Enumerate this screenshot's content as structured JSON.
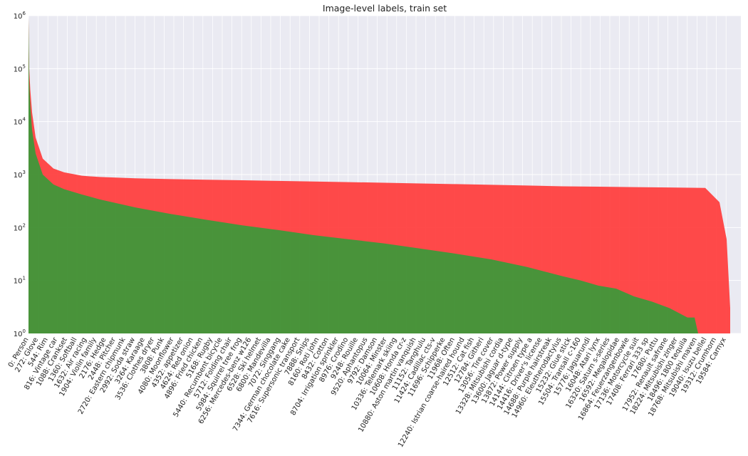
{
  "chart_data": {
    "type": "area",
    "title": "Image-level labels, train set",
    "xlabel": "",
    "ylabel": "",
    "yscale": "log",
    "ylim": [
      1,
      1000000
    ],
    "xlim": [
      0,
      20000
    ],
    "y_tick_values": [
      1,
      10,
      100,
      1000,
      10000,
      100000,
      1000000
    ],
    "y_tick_labels": [
      "10^0",
      "10^1",
      "10^2",
      "10^3",
      "10^4",
      "10^5",
      "10^6"
    ],
    "x_tick_values": [
      0,
      272,
      544,
      816,
      1088,
      1360,
      1632,
      1904,
      2176,
      2448,
      2720,
      2992,
      3264,
      3536,
      3808,
      4080,
      4352,
      4624,
      4896,
      5168,
      5440,
      5712,
      5984,
      6256,
      6528,
      6800,
      7072,
      7344,
      7616,
      7888,
      8160,
      8432,
      8704,
      8976,
      9248,
      9520,
      9792,
      10064,
      10336,
      10608,
      10880,
      11152,
      11424,
      11696,
      11968,
      12240,
      12512,
      12784,
      13056,
      13328,
      13600,
      13872,
      14144,
      14416,
      14688,
      14960,
      15232,
      15504,
      15776,
      16048,
      16320,
      16592,
      16864,
      17136,
      17408,
      17680,
      17952,
      18224,
      18496,
      18768,
      19040,
      19312,
      19584
    ],
    "x_tick_labels": [
      "0: Person",
      "272: Glove",
      "544: Rim",
      "816: Vintage car",
      "1088: Crankset",
      "1360: Softball",
      "1632: Air racing",
      "1904: Violin family",
      "2176: Hedge",
      "2448: Pitcher",
      "2720: Eastern chipmunk",
      "2992: Soda straw",
      "3264: Karaage",
      "3536: Clothes dryer",
      "3808: Punk",
      "4080: Moonflower",
      "4352: appetizer",
      "4624: Red onion",
      "4896: Fried chicken",
      "5168: Rugby",
      "5440: Recumbent bicycle",
      "5712: Folding chair",
      "5984: Squirrel tree frog",
      "6256: Mercedes-benz w126",
      "6528: Ski helmet",
      "6800: Mandevilla",
      "7072: Singgang",
      "7344: German chocolate cake",
      "7616: Supersonic transport",
      "7888: Snips",
      "8160: Roti john",
      "8432: Cotton",
      "8704: Irrigation sprinkler",
      "8976: Crodino",
      "9248: Rouille",
      "9520: Aphantopus",
      "9792: Damson",
      "10064: Minster",
      "10336: Telemark skiing",
      "10608: Honda cr-z",
      "10880: Aston martin vanquish",
      "11152: Tanghulu",
      "11424: Cadillac cts-v",
      "11696: Schipperke",
      "11968: Often",
      "12240: Istrian coarse-haired hound",
      "12512: Cat fish",
      "12784: Githeri",
      "13056: Tire cover",
      "13328: Mitsubishi cordia",
      "13600: Jaguar d-type",
      "13872: Power supply",
      "14144: Citroen type a",
      "14416: Driver's license",
      "14688: Purple hairstreak",
      "14960: Eleutherodactylus",
      "15232: Glue stick",
      "15504: Transall c-160",
      "15776: Jaguarundi",
      "16048: Atari lynx",
      "16320: Saturn s-series",
      "16592: Megalopidae",
      "16864: Feuerzangenbowle",
      "17136: Motorcycle suit",
      "17408: Ferrari 333 sp",
      "17680: Puttu",
      "17952: Renault safrane",
      "18224: Mitsubishi zinger",
      "18496: 1800 tequila",
      "18768: Mitsubishi maven",
      "19040: Isuzu bellel",
      "19312: Crumhorn",
      "19584: Carnyx"
    ],
    "series": [
      {
        "color": "#ff3b3b",
        "x": [
          0,
          20,
          50,
          100,
          200,
          400,
          700,
          1000,
          1500,
          2000,
          3000,
          4000,
          5000,
          6000,
          7000,
          8000,
          9000,
          10000,
          11000,
          12000,
          13000,
          14000,
          15000,
          16000,
          17000,
          18000,
          19000,
          19400,
          19600,
          19700
        ],
        "values": [
          900000,
          100000,
          40000,
          15000,
          5000,
          2000,
          1300,
          1100,
          950,
          900,
          850,
          820,
          800,
          780,
          760,
          740,
          720,
          700,
          680,
          660,
          640,
          620,
          600,
          590,
          580,
          570,
          560,
          300,
          60,
          3
        ]
      },
      {
        "color": "#3a9a3a",
        "x": [
          0,
          20,
          50,
          100,
          200,
          400,
          700,
          1000,
          1500,
          2000,
          3000,
          4000,
          5000,
          6000,
          7000,
          8000,
          9000,
          10000,
          11000,
          12000,
          13000,
          14000,
          15000,
          15500,
          16000,
          16500,
          17000,
          17500,
          18000,
          18500,
          18700,
          18800,
          19700
        ],
        "values": [
          900000,
          60000,
          20000,
          7000,
          2500,
          1000,
          650,
          530,
          420,
          340,
          240,
          180,
          140,
          110,
          90,
          72,
          60,
          50,
          40,
          32,
          25,
          18,
          12,
          10,
          8,
          7,
          5,
          4,
          3,
          2,
          2,
          1,
          1
        ]
      }
    ]
  }
}
